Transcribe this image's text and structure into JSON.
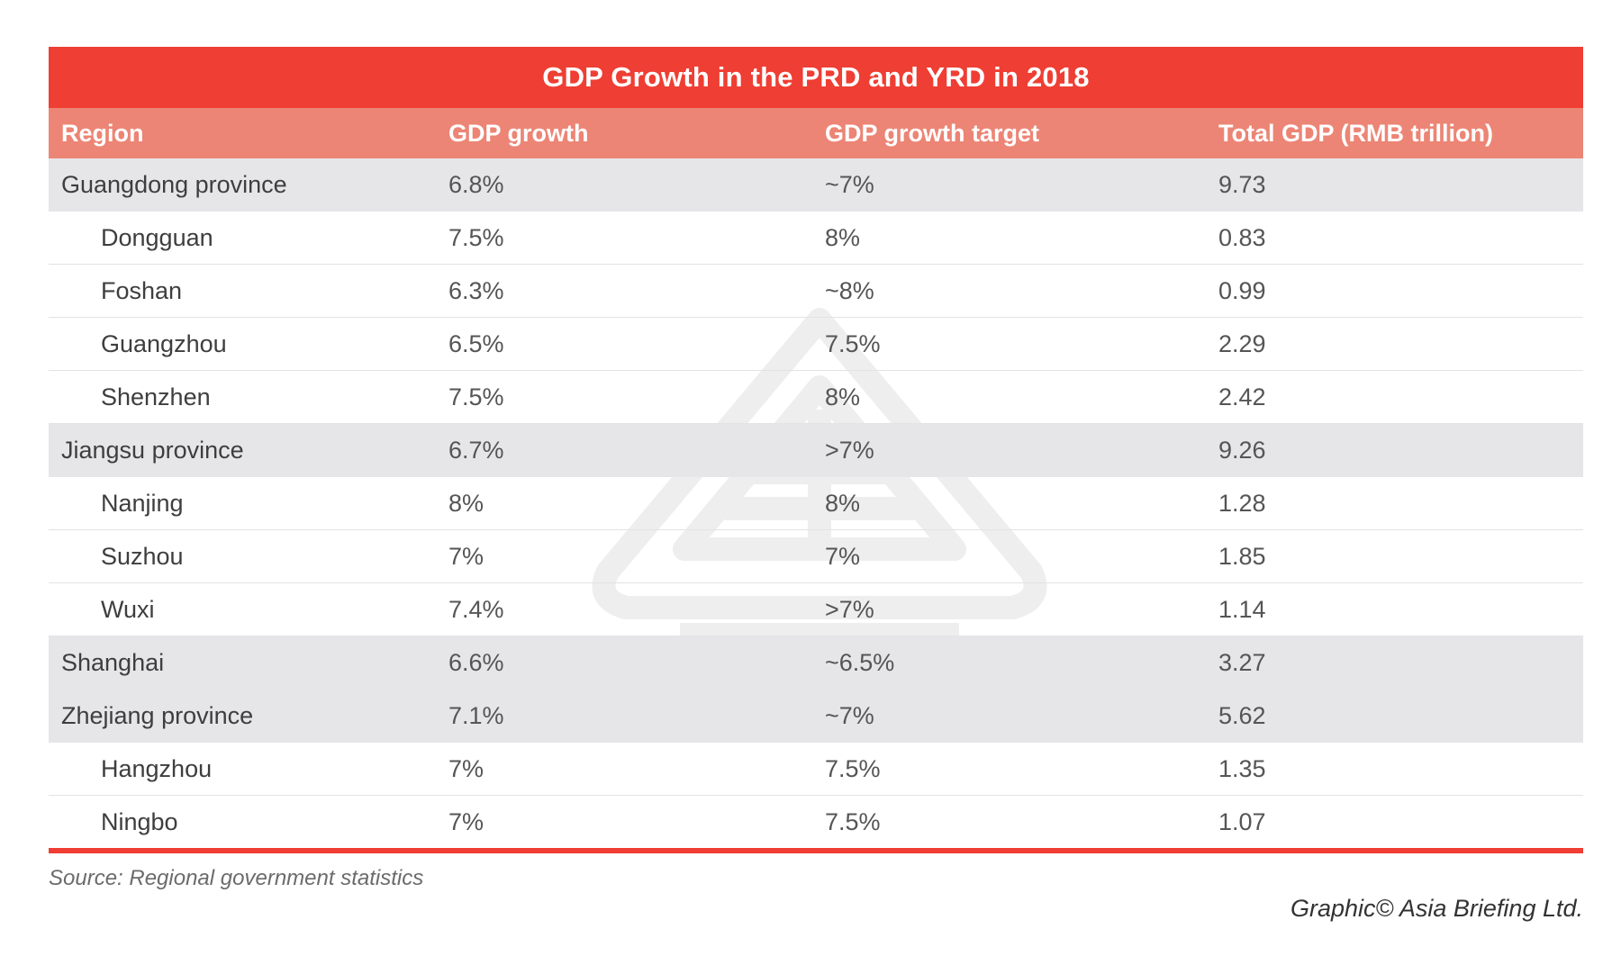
{
  "chart_data": {
    "type": "table",
    "title": "GDP Growth in the PRD and YRD in 2018",
    "columns": [
      "Region",
      "GDP growth",
      "GDP growth target",
      "Total GDP (RMB trillion)"
    ],
    "rows": [
      {
        "region": "Guangdong province",
        "level": "group",
        "gdp_growth": "6.8%",
        "target": "~7%",
        "total_gdp": "9.73"
      },
      {
        "region": "Dongguan",
        "level": "sub",
        "gdp_growth": "7.5%",
        "target": "8%",
        "total_gdp": "0.83"
      },
      {
        "region": "Foshan",
        "level": "sub",
        "gdp_growth": "6.3%",
        "target": "~8%",
        "total_gdp": "0.99"
      },
      {
        "region": "Guangzhou",
        "level": "sub",
        "gdp_growth": "6.5%",
        "target": "7.5%",
        "total_gdp": "2.29"
      },
      {
        "region": "Shenzhen",
        "level": "sub",
        "gdp_growth": "7.5%",
        "target": "8%",
        "total_gdp": "2.42"
      },
      {
        "region": "Jiangsu province",
        "level": "group",
        "gdp_growth": "6.7%",
        "target": ">7%",
        "total_gdp": "9.26"
      },
      {
        "region": "Nanjing",
        "level": "sub",
        "gdp_growth": "8%",
        "target": "8%",
        "total_gdp": "1.28"
      },
      {
        "region": "Suzhou",
        "level": "sub",
        "gdp_growth": "7%",
        "target": "7%",
        "total_gdp": "1.85"
      },
      {
        "region": "Wuxi",
        "level": "sub",
        "gdp_growth": "7.4%",
        "target": ">7%",
        "total_gdp": "1.14"
      },
      {
        "region": "Shanghai",
        "level": "group",
        "gdp_growth": "6.6%",
        "target": "~6.5%",
        "total_gdp": "3.27"
      },
      {
        "region": "Zhejiang province",
        "level": "group",
        "gdp_growth": "7.1%",
        "target": "~7%",
        "total_gdp": "5.62"
      },
      {
        "region": "Hangzhou",
        "level": "sub",
        "gdp_growth": "7%",
        "target": "7.5%",
        "total_gdp": "1.35"
      },
      {
        "region": "Ningbo",
        "level": "sub",
        "gdp_growth": "7%",
        "target": "7.5%",
        "total_gdp": "1.07"
      }
    ]
  },
  "footer": {
    "source": "Source: Regional government statistics",
    "credit": "Graphic© Asia Briefing Ltd."
  },
  "colors": {
    "title_bg": "#ef3e33",
    "header_bg": "#ec8575",
    "group_row_bg": "#e6e6e9",
    "rule": "#ef3e33"
  }
}
